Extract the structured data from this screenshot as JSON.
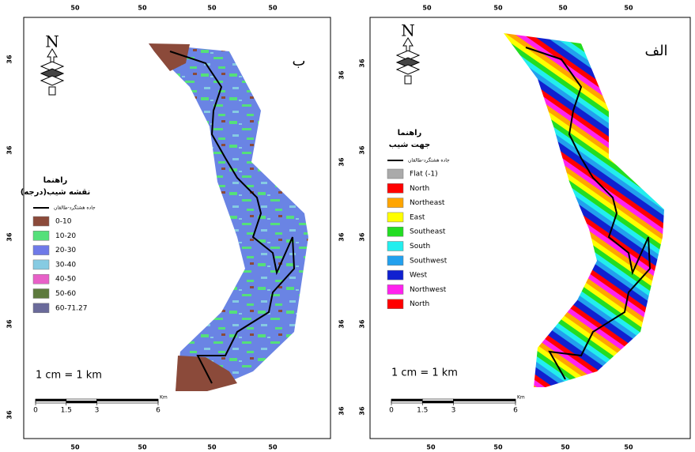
{
  "panels": [
    {
      "letter": "ب",
      "north": "N",
      "top_labels": [
        "50",
        "50",
        "50",
        "50"
      ],
      "bottom_labels": [
        "50",
        "50",
        "50",
        "50"
      ],
      "left_labels": [
        "36",
        "36",
        "36",
        "36",
        "36"
      ],
      "right_labels": [
        "36",
        "36",
        "36",
        "36",
        "36"
      ],
      "legend": {
        "title": "راهنما",
        "subtitle": "نقشه شیب(درجه)",
        "road": "جاده هشتگرد-طالقان",
        "items": [
          {
            "label": "0-10",
            "color": "#8b4a3a"
          },
          {
            "label": "10-20",
            "color": "#55e07a"
          },
          {
            "label": "20-30",
            "color": "#6f7ae8"
          },
          {
            "label": "30-40",
            "color": "#86cbe2"
          },
          {
            "label": "40-50",
            "color": "#e860c8"
          },
          {
            "label": "50-60",
            "color": "#5d7a3d"
          },
          {
            "label": "60-71.27",
            "color": "#6a6a9a"
          }
        ]
      },
      "scale_text": "1 cm = 1 km",
      "scale_ticks": [
        0,
        1.5,
        3,
        6
      ],
      "scale_unit": "Km"
    },
    {
      "letter": "الف",
      "north": "N",
      "top_labels": [
        "50",
        "50",
        "50",
        "50"
      ],
      "bottom_labels": [
        "50",
        "50",
        "50",
        "50"
      ],
      "left_labels": [
        "36",
        "36",
        "36",
        "36",
        "36"
      ],
      "legend": {
        "title": "راهنما",
        "subtitle": "جهت شیب",
        "road": "جاده هشتگرد-طالقان",
        "items": [
          {
            "label": "Flat (-1)",
            "color": "#aaaaaa"
          },
          {
            "label": "North",
            "color": "#ff0000"
          },
          {
            "label": "Northeast",
            "color": "#ffa500"
          },
          {
            "label": "East",
            "color": "#ffff00"
          },
          {
            "label": "Southeast",
            "color": "#22dd22"
          },
          {
            "label": "South",
            "color": "#22eeee"
          },
          {
            "label": "Southwest",
            "color": "#22a0ee"
          },
          {
            "label": "West",
            "color": "#1020d0"
          },
          {
            "label": "Northwest",
            "color": "#ff22ee"
          },
          {
            "label": "North",
            "color": "#ff0000"
          }
        ]
      },
      "scale_text": "1 cm = 1 km",
      "scale_ticks": [
        0,
        1.5,
        3,
        6
      ],
      "scale_unit": "Km"
    }
  ]
}
